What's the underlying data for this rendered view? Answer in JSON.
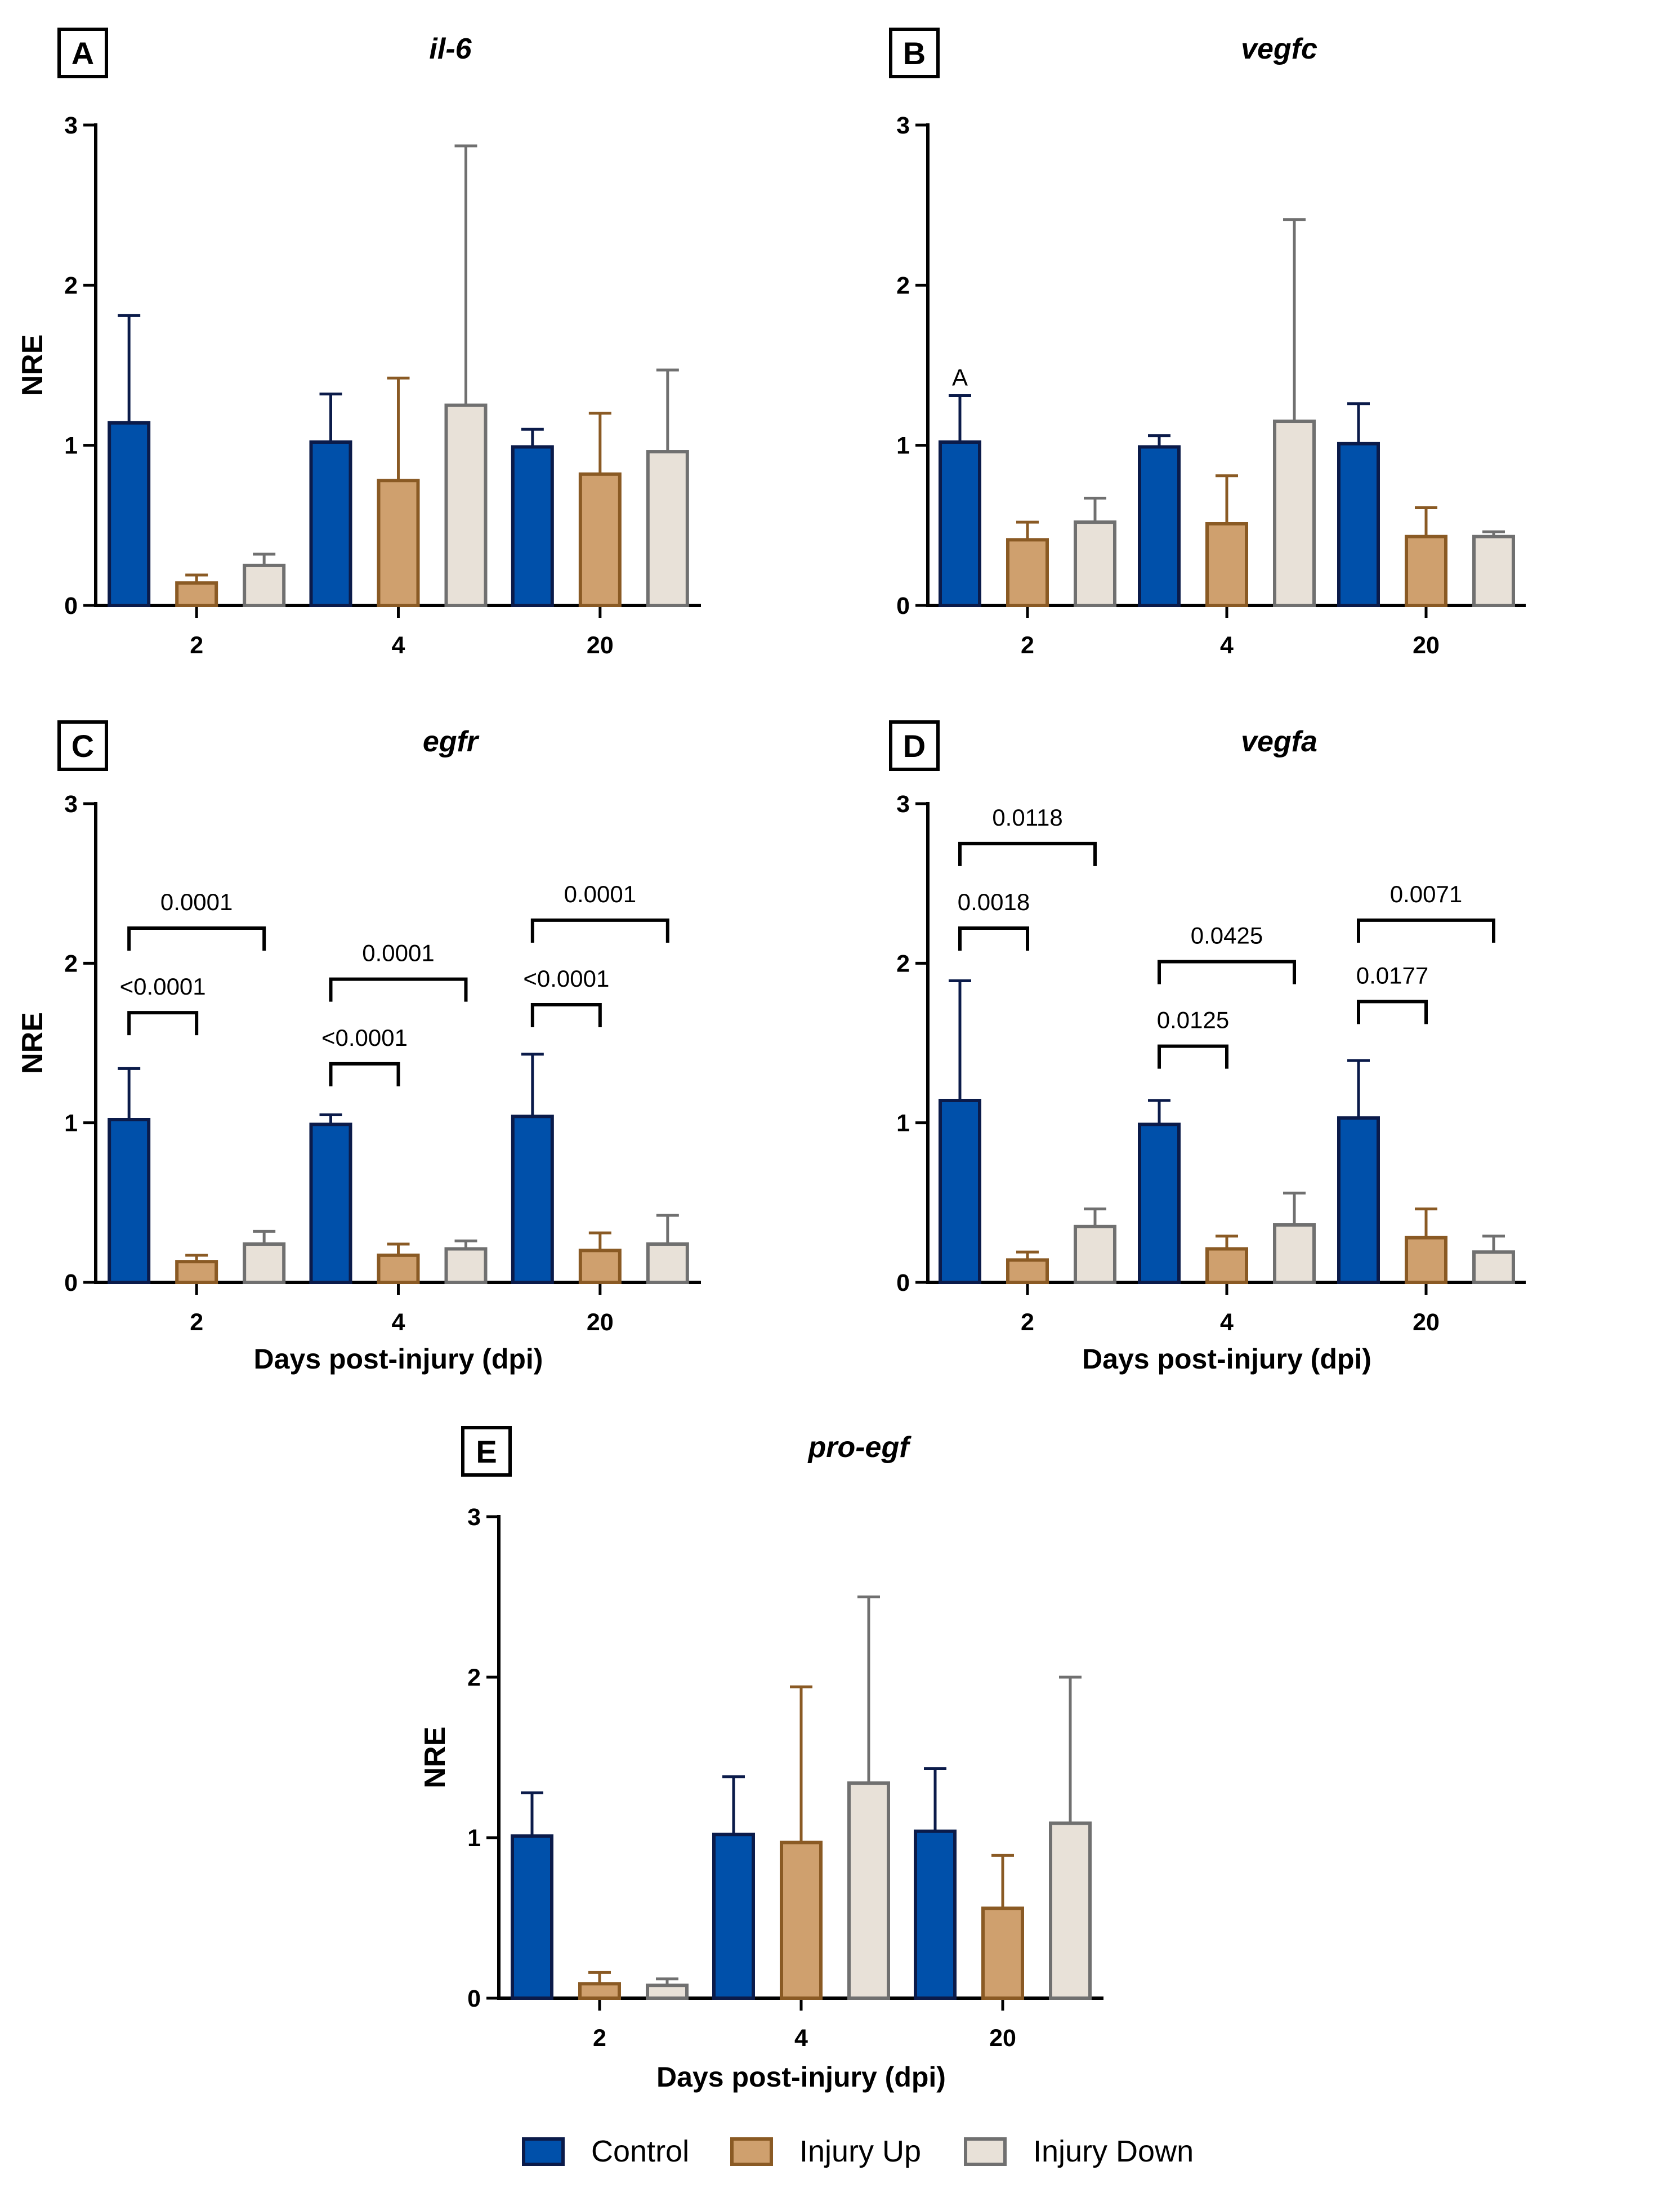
{
  "chart_data": [
    {
      "panel": "A",
      "type": "bar",
      "title": "il-6",
      "xlabel": "",
      "ylabel": "NRE",
      "ylim": [
        0,
        3
      ],
      "yticks": [
        0,
        1,
        2,
        3
      ],
      "categories": [
        "2",
        "4",
        "20"
      ],
      "series": [
        {
          "name": "Control",
          "values": [
            1.14,
            1.02,
            0.99
          ],
          "errors": [
            0.67,
            0.3,
            0.11
          ]
        },
        {
          "name": "Injury Up",
          "values": [
            0.14,
            0.78,
            0.82
          ],
          "errors": [
            0.05,
            0.64,
            0.38
          ]
        },
        {
          "name": "Injury Down",
          "values": [
            0.25,
            1.25,
            0.96
          ],
          "errors": [
            0.07,
            1.62,
            0.51
          ]
        }
      ],
      "annotations": []
    },
    {
      "panel": "B",
      "type": "bar",
      "title": "vegfc",
      "xlabel": "",
      "ylabel": "",
      "ylim": [
        0,
        3
      ],
      "yticks": [
        0,
        1,
        2,
        3
      ],
      "categories": [
        "2",
        "4",
        "20"
      ],
      "series": [
        {
          "name": "Control",
          "values": [
            1.02,
            0.99,
            1.01
          ],
          "errors": [
            0.29,
            0.07,
            0.25
          ]
        },
        {
          "name": "Injury Up",
          "values": [
            0.41,
            0.51,
            0.43
          ],
          "errors": [
            0.11,
            0.3,
            0.18
          ]
        },
        {
          "name": "Injury Down",
          "values": [
            0.52,
            1.15,
            0.43
          ],
          "errors": [
            0.15,
            1.26,
            0.03
          ]
        }
      ],
      "annotations": [
        {
          "text": "A",
          "group": 0,
          "series": 0
        }
      ]
    },
    {
      "panel": "C",
      "type": "bar",
      "title": "egfr",
      "xlabel": "Days post-injury (dpi)",
      "ylabel": "NRE",
      "ylim": [
        0,
        3
      ],
      "yticks": [
        0,
        1,
        2,
        3
      ],
      "categories": [
        "2",
        "4",
        "20"
      ],
      "series": [
        {
          "name": "Control",
          "values": [
            1.02,
            0.99,
            1.04
          ],
          "errors": [
            0.32,
            0.06,
            0.39
          ]
        },
        {
          "name": "Injury Up",
          "values": [
            0.13,
            0.17,
            0.2
          ],
          "errors": [
            0.04,
            0.07,
            0.11
          ]
        },
        {
          "name": "Injury Down",
          "values": [
            0.24,
            0.21,
            0.24
          ],
          "errors": [
            0.08,
            0.05,
            0.18
          ]
        }
      ],
      "comparisons": [
        {
          "group": 0,
          "from": 0,
          "to": 1,
          "y": 1.69,
          "label": "<0.0001"
        },
        {
          "group": 0,
          "from": 0,
          "to": 2,
          "y": 2.22,
          "label": "0.0001"
        },
        {
          "group": 1,
          "from": 0,
          "to": 1,
          "y": 1.37,
          "label": "<0.0001"
        },
        {
          "group": 1,
          "from": 0,
          "to": 2,
          "y": 1.9,
          "label": "0.0001"
        },
        {
          "group": 2,
          "from": 0,
          "to": 1,
          "y": 1.74,
          "label": "<0.0001"
        },
        {
          "group": 2,
          "from": 0,
          "to": 2,
          "y": 2.27,
          "label": "0.0001"
        }
      ]
    },
    {
      "panel": "D",
      "type": "bar",
      "title": "vegfa",
      "xlabel": "Days post-injury (dpi)",
      "ylabel": "",
      "ylim": [
        0,
        3
      ],
      "yticks": [
        0,
        1,
        2,
        3
      ],
      "categories": [
        "2",
        "4",
        "20"
      ],
      "series": [
        {
          "name": "Control",
          "values": [
            1.14,
            0.99,
            1.03
          ],
          "errors": [
            0.75,
            0.15,
            0.36
          ]
        },
        {
          "name": "Injury Up",
          "values": [
            0.14,
            0.21,
            0.28
          ],
          "errors": [
            0.05,
            0.08,
            0.18
          ]
        },
        {
          "name": "Injury Down",
          "values": [
            0.35,
            0.36,
            0.19
          ],
          "errors": [
            0.11,
            0.2,
            0.1
          ]
        }
      ],
      "comparisons": [
        {
          "group": 0,
          "from": 0,
          "to": 1,
          "y": 2.22,
          "label": "0.0018"
        },
        {
          "group": 0,
          "from": 0,
          "to": 2,
          "y": 2.75,
          "label": "0.0118"
        },
        {
          "group": 1,
          "from": 0,
          "to": 1,
          "y": 1.48,
          "label": "0.0125"
        },
        {
          "group": 1,
          "from": 0,
          "to": 2,
          "y": 2.01,
          "label": "0.0425"
        },
        {
          "group": 2,
          "from": 0,
          "to": 1,
          "y": 1.76,
          "label": "0.0177"
        },
        {
          "group": 2,
          "from": 0,
          "to": 2,
          "y": 2.27,
          "label": "0.0071"
        }
      ]
    },
    {
      "panel": "E",
      "type": "bar",
      "title": "pro-egf",
      "xlabel": "Days post-injury (dpi)",
      "ylabel": "NRE",
      "ylim": [
        0,
        3
      ],
      "yticks": [
        0,
        1,
        2,
        3
      ],
      "categories": [
        "2",
        "4",
        "20"
      ],
      "series": [
        {
          "name": "Control",
          "values": [
            1.01,
            1.02,
            1.04
          ],
          "errors": [
            0.27,
            0.36,
            0.39
          ]
        },
        {
          "name": "Injury Up",
          "values": [
            0.09,
            0.97,
            0.56
          ],
          "errors": [
            0.07,
            0.97,
            0.33
          ]
        },
        {
          "name": "Injury Down",
          "values": [
            0.08,
            1.34,
            1.09
          ],
          "errors": [
            0.04,
            1.16,
            0.91
          ]
        }
      ],
      "annotations": []
    }
  ],
  "legend": [
    {
      "name": "Control",
      "fill": "#0050aa",
      "stroke": "#0b1b4a"
    },
    {
      "name": "Injury Up",
      "fill": "#cfa06e",
      "stroke": "#8a5a24"
    },
    {
      "name": "Injury Down",
      "fill": "#e8e1d8",
      "stroke": "#707070"
    }
  ]
}
